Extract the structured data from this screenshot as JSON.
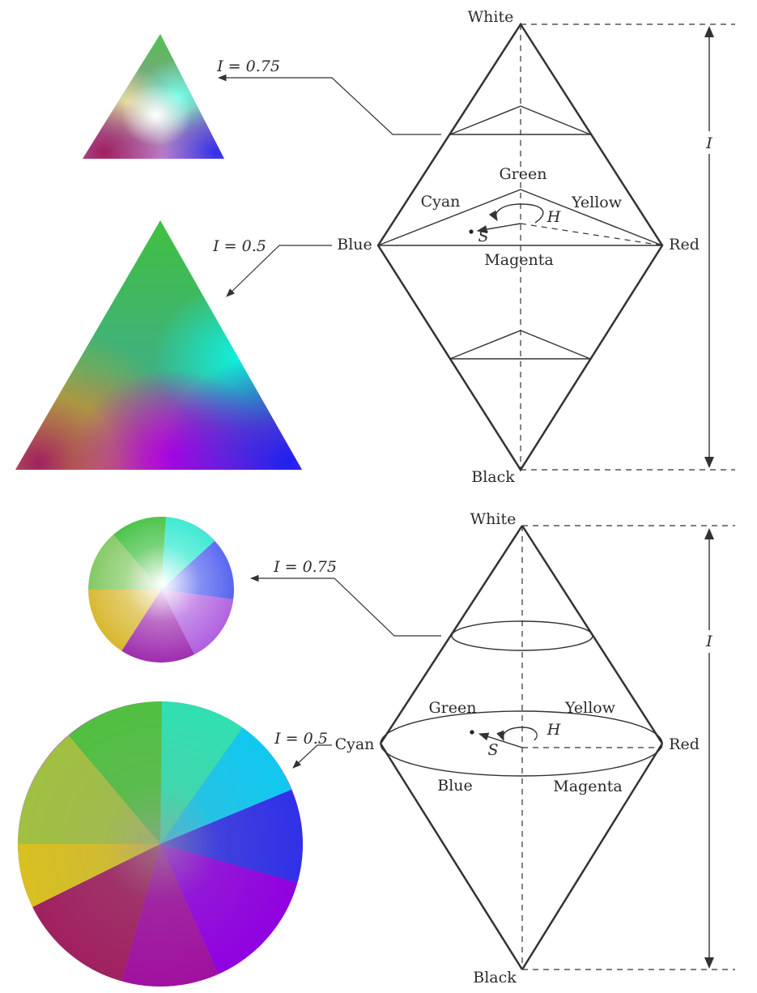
{
  "top_solid": {
    "labels": {
      "white": "White",
      "black": "Black",
      "green": "Green",
      "cyan": "Cyan",
      "yellow": "Yellow",
      "blue": "Blue",
      "red": "Red",
      "magenta": "Magenta",
      "hue": "H",
      "saturation": "S",
      "intensity": "I"
    },
    "slice_upper_label": "I = 0.75",
    "slice_middle_label": "I = 0.5"
  },
  "bottom_solid": {
    "labels": {
      "white": "White",
      "black": "Black",
      "green": "Green",
      "yellow": "Yellow",
      "cyan": "Cyan",
      "red": "Red",
      "blue": "Blue",
      "magenta": "Magenta",
      "hue": "H",
      "saturation": "S",
      "intensity": "I"
    },
    "slice_upper_label": "I = 0.75",
    "slice_middle_label": "I = 0.5"
  },
  "colors": {
    "red": "#ff2020",
    "green": "#40c040",
    "blue": "#3030e8",
    "cyan": "#10f0e0",
    "yellow": "#d8c020",
    "magenta": "#b000e0",
    "crimson": "#a02060",
    "white": "#ffffff",
    "line": "#333333"
  }
}
